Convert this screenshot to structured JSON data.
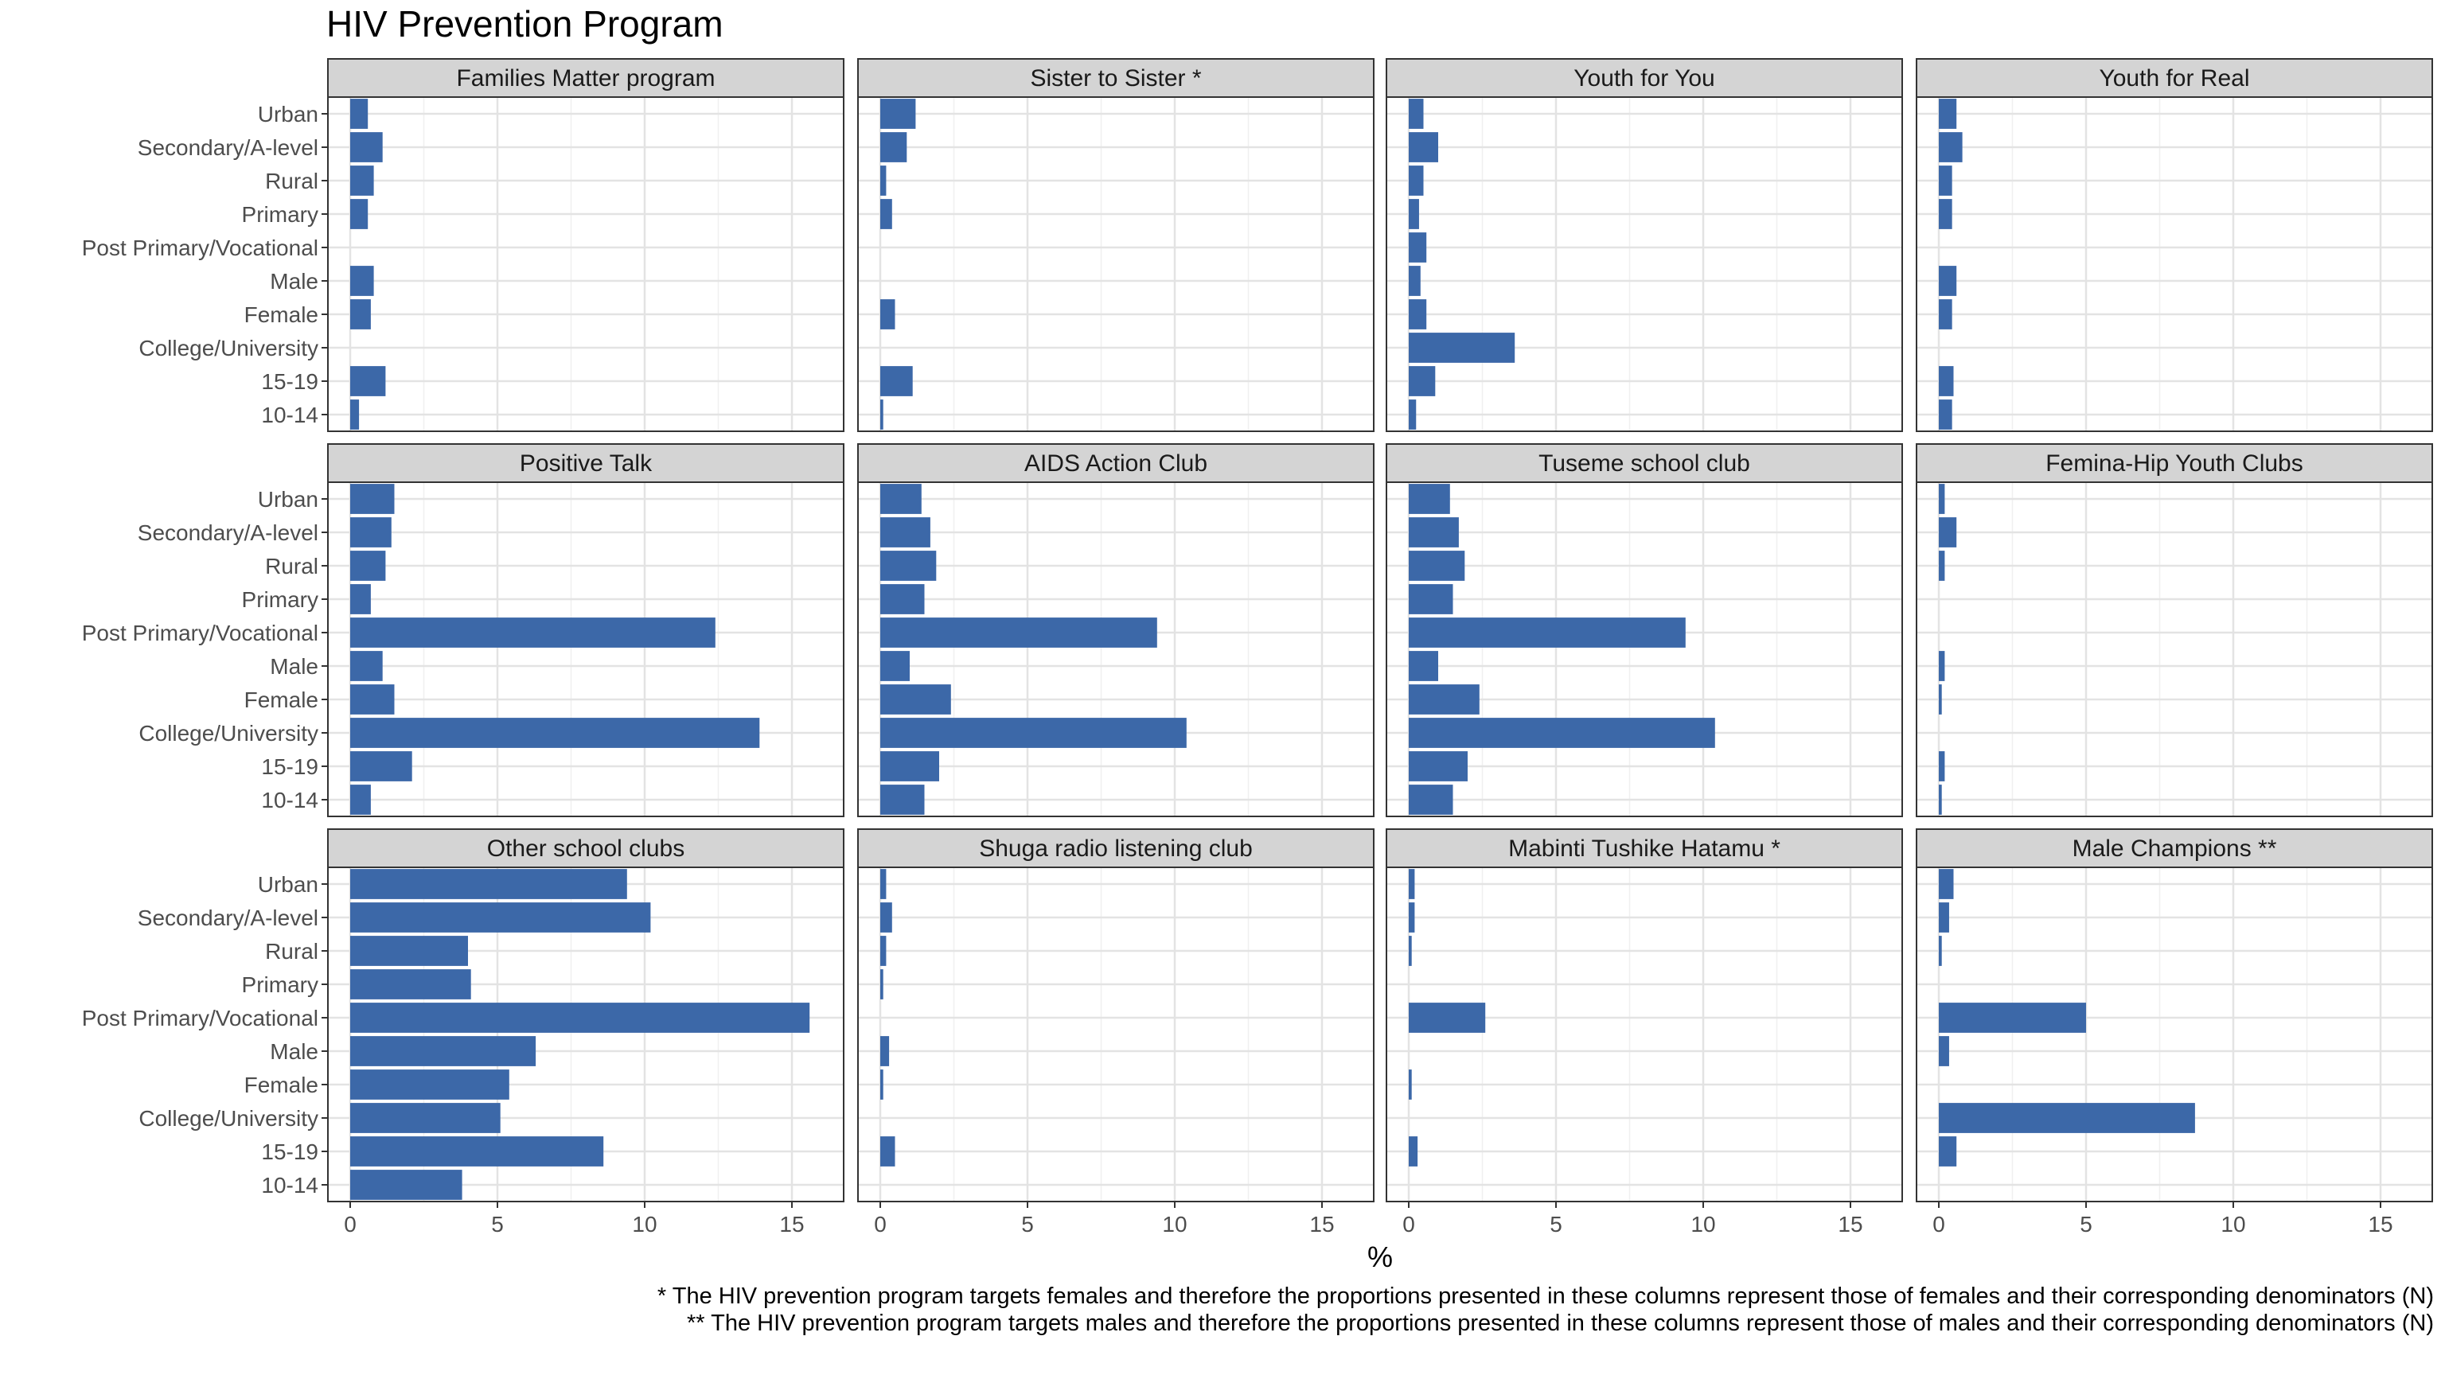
{
  "chart_data": {
    "type": "bar",
    "orientation": "horizontal",
    "title": "HIV Prevention Program",
    "xlabel": "%",
    "ylabel": "",
    "xlim": [
      0,
      16
    ],
    "x_ticks": [
      0,
      5,
      10,
      15
    ],
    "categories": [
      "Urban",
      "Secondary/A-level",
      "Rural",
      "Primary",
      "Post Primary/Vocational",
      "Male",
      "Female",
      "College/University",
      "15-19",
      "10-14"
    ],
    "grid": true,
    "bar_color": "#3c68a8",
    "strip_color": "#d4d4d4",
    "caption_lines": [
      "* The HIV prevention program targets females and therefore the proportions presented in these columns represent those of females and their corresponding denominators (N)",
      "** The HIV prevention program targets males and therefore the proportions presented in these columns represent those of males and their corresponding denominators (N)"
    ],
    "panels": [
      {
        "name": "Families Matter program",
        "values": [
          0.6,
          1.1,
          0.8,
          0.6,
          0,
          0.8,
          0.7,
          0,
          1.2,
          0.3
        ]
      },
      {
        "name": "Sister to Sister *",
        "values": [
          1.2,
          0.9,
          0.2,
          0.4,
          0,
          0,
          0.5,
          0,
          1.1,
          0.1
        ]
      },
      {
        "name": "Youth for You",
        "values": [
          0.5,
          1.0,
          0.5,
          0.35,
          0.6,
          0.4,
          0.6,
          3.6,
          0.9,
          0.25
        ]
      },
      {
        "name": "Youth for Real",
        "values": [
          0.6,
          0.8,
          0.45,
          0.45,
          0,
          0.6,
          0.45,
          0,
          0.5,
          0.45
        ]
      },
      {
        "name": "Positive Talk",
        "values": [
          1.5,
          1.4,
          1.2,
          0.7,
          12.4,
          1.1,
          1.5,
          13.9,
          2.1,
          0.7
        ]
      },
      {
        "name": "AIDS Action Club",
        "values": [
          1.4,
          1.7,
          1.9,
          1.5,
          9.4,
          1.0,
          2.4,
          10.4,
          2.0,
          1.5
        ]
      },
      {
        "name": "Tuseme school club",
        "values": [
          1.4,
          1.7,
          1.9,
          1.5,
          9.4,
          1.0,
          2.4,
          10.4,
          2.0,
          1.5
        ]
      },
      {
        "name": "Femina-Hip Youth Clubs",
        "values": [
          0.2,
          0.6,
          0.2,
          0,
          0,
          0.2,
          0.1,
          0,
          0.2,
          0.1
        ]
      },
      {
        "name": "Other school clubs",
        "values": [
          9.4,
          10.2,
          4.0,
          4.1,
          15.6,
          6.3,
          5.4,
          5.1,
          8.6,
          3.8
        ]
      },
      {
        "name": "Shuga radio listening club",
        "values": [
          0.2,
          0.4,
          0.2,
          0.1,
          0,
          0.3,
          0.1,
          0,
          0.5,
          0
        ]
      },
      {
        "name": "Mabinti Tushike Hatamu *",
        "values": [
          0.2,
          0.2,
          0.1,
          0,
          2.6,
          0,
          0.1,
          0,
          0.3,
          0
        ]
      },
      {
        "name": "Male Champions **",
        "values": [
          0.5,
          0.35,
          0.1,
          0,
          5.0,
          0.35,
          0,
          8.7,
          0.6,
          0
        ]
      }
    ]
  }
}
